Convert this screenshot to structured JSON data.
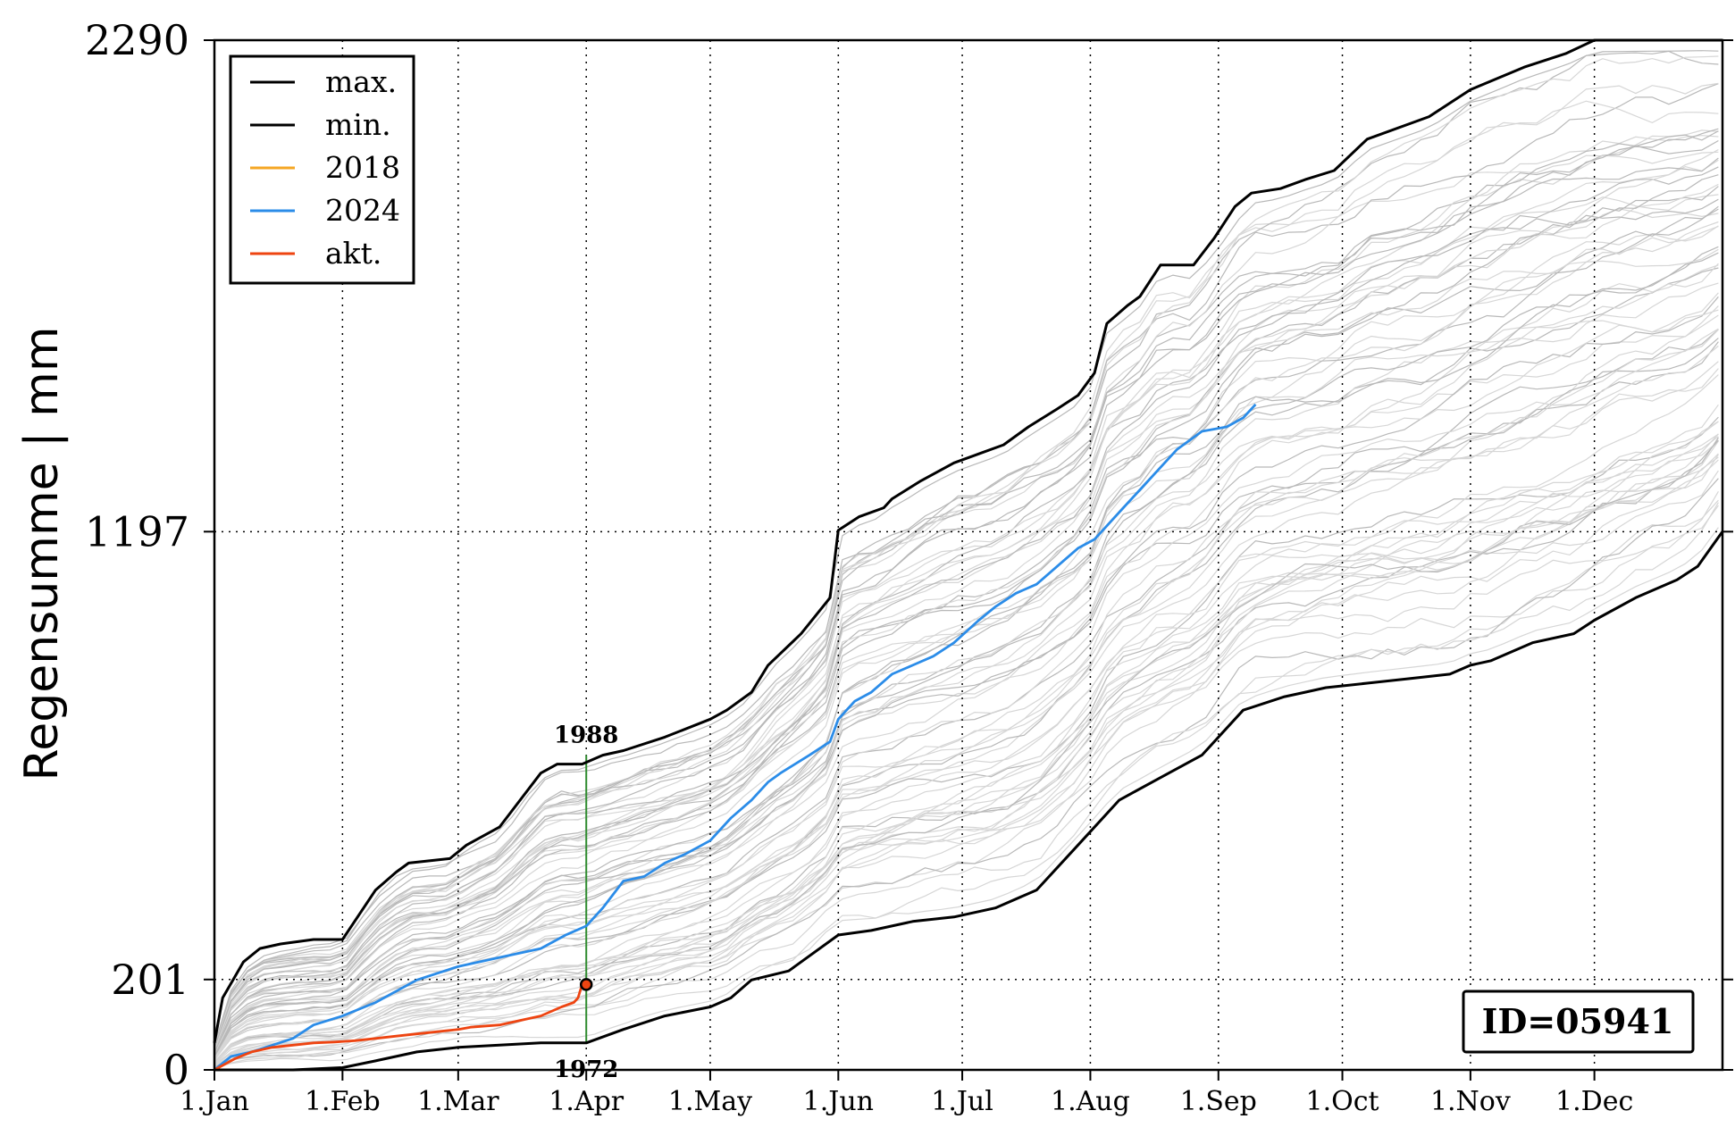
{
  "chart_data": {
    "type": "line",
    "ylabel": "Regensumme | mm",
    "y_ticks": [
      "0",
      "201",
      "1197",
      "2290"
    ],
    "y_tick_values": [
      0,
      201,
      1197,
      2290
    ],
    "x_ticks": [
      "1.Jan",
      "1.Feb",
      "1.Mar",
      "1.Apr",
      "1.May",
      "1.Jun",
      "1.Jul",
      "1.Aug",
      "1.Sep",
      "1.Oct",
      "1.Nov",
      "1.Dec"
    ],
    "x_tick_days": [
      1,
      32,
      60,
      91,
      121,
      152,
      182,
      213,
      244,
      274,
      305,
      335
    ],
    "xlim": [
      1,
      366
    ],
    "ylim": [
      0,
      2290
    ],
    "grid": "dotted at ticks",
    "legend_position": "top-left",
    "legend": [
      {
        "label": "max.",
        "color": "#000000"
      },
      {
        "label": "min.",
        "color": "#000000"
      },
      {
        "label": "2018",
        "color": "#f5a623"
      },
      {
        "label": "2024",
        "color": "#2b8ce8"
      },
      {
        "label": "akt.",
        "color": "#ee4411"
      }
    ],
    "series": [
      {
        "name": "max.",
        "color": "#000000",
        "x": [
          1,
          3,
          8,
          12,
          17,
          25,
          32,
          40,
          45,
          48,
          58,
          62,
          70,
          80,
          84,
          90,
          95,
          100,
          110,
          121,
          125,
          131,
          135,
          143,
          150,
          152,
          157,
          163,
          165,
          172,
          180,
          186,
          192,
          198,
          205,
          210,
          214,
          217,
          222,
          225,
          230,
          238,
          243,
          248,
          252,
          259,
          265,
          272,
          280,
          295,
          305,
          318,
          328,
          335,
          340,
          350,
          355,
          363,
          366
        ],
        "y": [
          60,
          160,
          240,
          270,
          280,
          290,
          290,
          400,
          440,
          460,
          470,
          500,
          540,
          660,
          680,
          680,
          700,
          710,
          740,
          780,
          800,
          840,
          900,
          970,
          1050,
          1200,
          1230,
          1250,
          1270,
          1310,
          1350,
          1370,
          1390,
          1430,
          1470,
          1500,
          1550,
          1660,
          1700,
          1720,
          1790,
          1790,
          1850,
          1920,
          1950,
          1960,
          1980,
          2000,
          2070,
          2120,
          2180,
          2230,
          2260,
          2290,
          2290,
          2290,
          2290,
          2290,
          2290
        ]
      },
      {
        "name": "min.",
        "color": "#000000",
        "x": [
          1,
          10,
          20,
          32,
          40,
          50,
          60,
          70,
          80,
          91,
          100,
          110,
          121,
          126,
          131,
          140,
          152,
          160,
          170,
          180,
          190,
          200,
          210,
          220,
          230,
          240,
          250,
          260,
          265,
          270,
          280,
          290,
          300,
          305,
          310,
          320,
          330,
          335,
          345,
          355,
          360,
          366
        ],
        "y": [
          0,
          0,
          0,
          5,
          20,
          40,
          50,
          55,
          60,
          60,
          90,
          120,
          140,
          160,
          200,
          220,
          300,
          310,
          330,
          340,
          360,
          400,
          500,
          600,
          650,
          700,
          800,
          830,
          840,
          850,
          860,
          870,
          880,
          900,
          910,
          950,
          970,
          1000,
          1050,
          1090,
          1120,
          1197
        ]
      },
      {
        "name": "2018",
        "color": "#f5a623",
        "x": [],
        "y": []
      },
      {
        "name": "2024",
        "color": "#2b8ce8",
        "x": [
          1,
          5,
          10,
          20,
          25,
          32,
          40,
          50,
          60,
          70,
          80,
          86,
          91,
          95,
          100,
          105,
          110,
          115,
          121,
          126,
          131,
          135,
          138,
          145,
          150,
          152,
          156,
          160,
          165,
          170,
          175,
          180,
          186,
          190,
          195,
          200,
          205,
          210,
          214,
          218,
          222,
          226,
          230,
          234,
          240,
          246,
          250,
          253
        ],
        "y": [
          0,
          30,
          40,
          70,
          100,
          120,
          150,
          200,
          230,
          250,
          270,
          300,
          320,
          360,
          420,
          430,
          460,
          480,
          510,
          560,
          600,
          640,
          660,
          700,
          730,
          780,
          820,
          840,
          880,
          900,
          920,
          950,
          1000,
          1030,
          1060,
          1080,
          1120,
          1160,
          1180,
          1220,
          1260,
          1300,
          1340,
          1380,
          1420,
          1430,
          1450,
          1480
        ]
      },
      {
        "name": "akt.",
        "color": "#ee4411",
        "x": [
          1,
          3,
          6,
          10,
          15,
          20,
          25,
          30,
          35,
          40,
          45,
          50,
          55,
          60,
          63,
          70,
          75,
          80,
          85,
          88,
          89,
          90
        ],
        "y": [
          0,
          10,
          25,
          40,
          50,
          55,
          60,
          62,
          65,
          70,
          75,
          80,
          85,
          90,
          95,
          100,
          110,
          120,
          140,
          150,
          160,
          190
        ]
      }
    ],
    "annotations": [
      {
        "text": "1988",
        "x": 91,
        "y": 700
      },
      {
        "text": "1972",
        "x": 91,
        "y": 60
      }
    ],
    "marker": {
      "x": 91,
      "y": 190,
      "color": "#ee4411"
    },
    "vertical_line": {
      "x": 91,
      "y_from": 60,
      "y_to": 700,
      "color": "#2e8b2e"
    },
    "id_box": "ID=05941"
  }
}
